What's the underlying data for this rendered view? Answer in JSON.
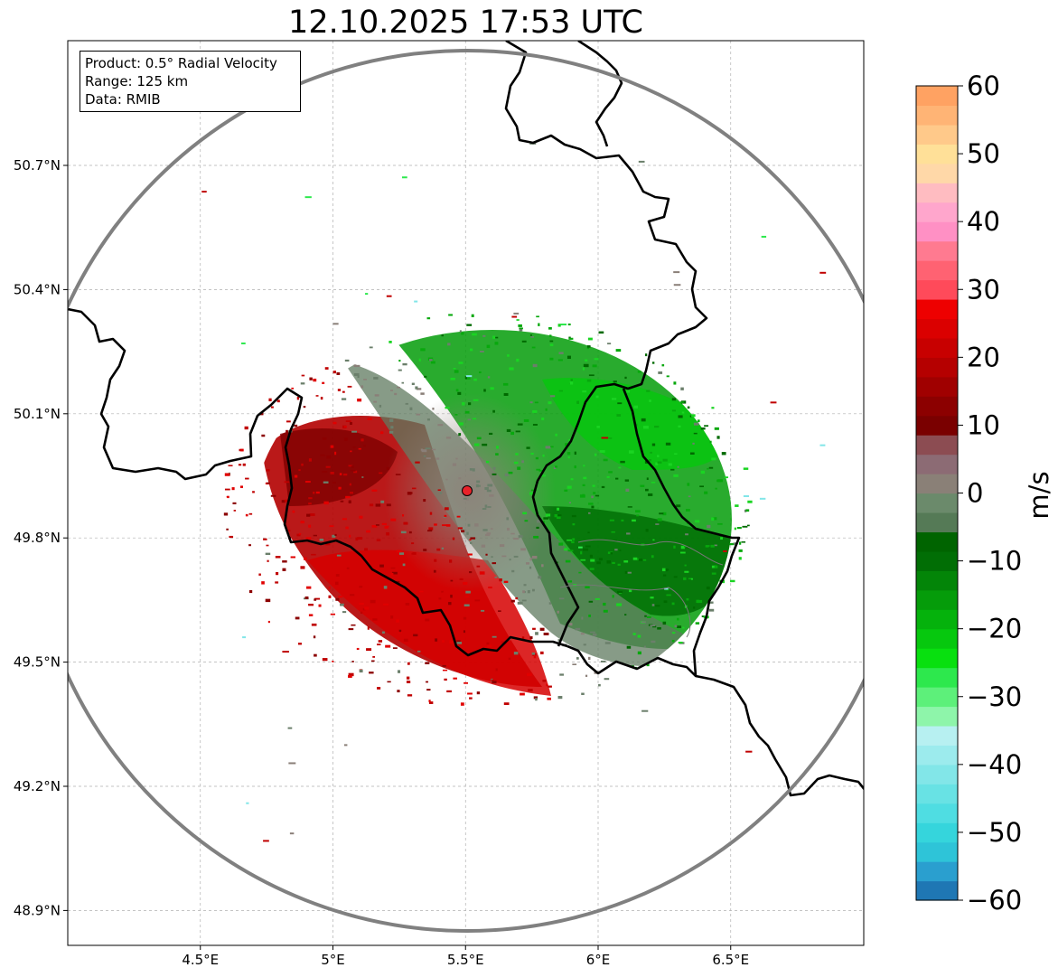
{
  "title": "12.10.2025 17:53 UTC",
  "info": {
    "product": "Product: 0.5° Radial Velocity",
    "range": "Range: 125 km",
    "source": "Data: RMIB"
  },
  "axes": {
    "lat_ticks": [
      "50.7°N",
      "50.4°N",
      "50.1°N",
      "49.8°N",
      "49.5°N",
      "49.2°N",
      "48.9°N"
    ],
    "lon_ticks": [
      "4.5°E",
      "5°E",
      "5.5°E",
      "6°E",
      "6.5°E"
    ],
    "lon_range": [
      4.0,
      7.0
    ],
    "lat_range": [
      48.8,
      51.0
    ],
    "grid": true
  },
  "radar": {
    "site_lon": 5.505,
    "site_lat": 49.915,
    "range_km": 125,
    "marker_color": "#e8232a"
  },
  "colorbar": {
    "unit": "m/s",
    "ticks": [
      "60",
      "50",
      "40",
      "30",
      "20",
      "10",
      "0",
      "−10",
      "−20",
      "−30",
      "−40",
      "−50",
      "−60"
    ],
    "vmin": -60,
    "vmax": 60,
    "colors": [
      "#1f77b4",
      "#2a9fcf",
      "#2ec4d8",
      "#35d5dc",
      "#4fdde2",
      "#68e2e4",
      "#82e6e8",
      "#9cebed",
      "#b7f0f1",
      "#8ef5aa",
      "#5df07a",
      "#2de84d",
      "#08e00f",
      "#06c80e",
      "#05b20c",
      "#059c0a",
      "#038508",
      "#016e05",
      "#006400",
      "#557a56",
      "#6b8a6b",
      "#8a8077",
      "#8c6b74",
      "#8c4c52",
      "#7a0000",
      "#8c0000",
      "#a00000",
      "#b50000",
      "#c80000",
      "#db0000",
      "#ee0000",
      "#ff4a5a",
      "#ff6272",
      "#ff7a90",
      "#ff90c4",
      "#ffa6cc",
      "#ffbcc1",
      "#ffd8a8",
      "#ffe098",
      "#ffc98a",
      "#ffb475",
      "#ffa262"
    ]
  },
  "borders": {
    "line_color": "#000000",
    "range_ring_color": "#808080"
  }
}
